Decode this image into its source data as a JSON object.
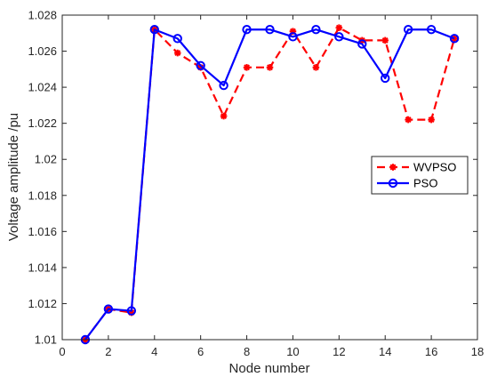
{
  "chart_data": {
    "type": "line",
    "xlabel": "Node number",
    "ylabel": "Voltage amplitude /pu",
    "xlim": [
      0,
      18
    ],
    "ylim": [
      1.01,
      1.028
    ],
    "xticks": [
      0,
      2,
      4,
      6,
      8,
      10,
      12,
      14,
      16,
      18
    ],
    "yticks": [
      1.01,
      1.012,
      1.014,
      1.016,
      1.018,
      1.02,
      1.022,
      1.024,
      1.026,
      1.028
    ],
    "xtick_labels": [
      "0",
      "2",
      "4",
      "6",
      "8",
      "10",
      "12",
      "14",
      "16",
      "18"
    ],
    "ytick_labels": [
      "1.01",
      "1.012",
      "1.014",
      "1.016",
      "1.018",
      "1.02",
      "1.022",
      "1.024",
      "1.026",
      "1.028"
    ],
    "grid": false,
    "legend_position": "right",
    "x": [
      1,
      2,
      3,
      4,
      5,
      6,
      7,
      8,
      9,
      10,
      11,
      12,
      13,
      14,
      15,
      16,
      17
    ],
    "series": [
      {
        "name": "WVPSO",
        "color": "#ff0000",
        "style": "dashed",
        "marker": "asterisk",
        "values": [
          1.01,
          1.0117,
          1.0115,
          1.0272,
          1.0259,
          1.0251,
          1.0224,
          1.0251,
          1.0251,
          1.0271,
          1.0251,
          1.0273,
          1.0266,
          1.0266,
          1.0222,
          1.0222,
          1.0267
        ]
      },
      {
        "name": "PSO",
        "color": "#0000ff",
        "style": "solid",
        "marker": "circle",
        "values": [
          1.01,
          1.0117,
          1.0116,
          1.0272,
          1.0267,
          1.0252,
          1.0241,
          1.0272,
          1.0272,
          1.0268,
          1.0272,
          1.0268,
          1.0264,
          1.0245,
          1.0272,
          1.0272,
          1.0267
        ]
      }
    ]
  }
}
